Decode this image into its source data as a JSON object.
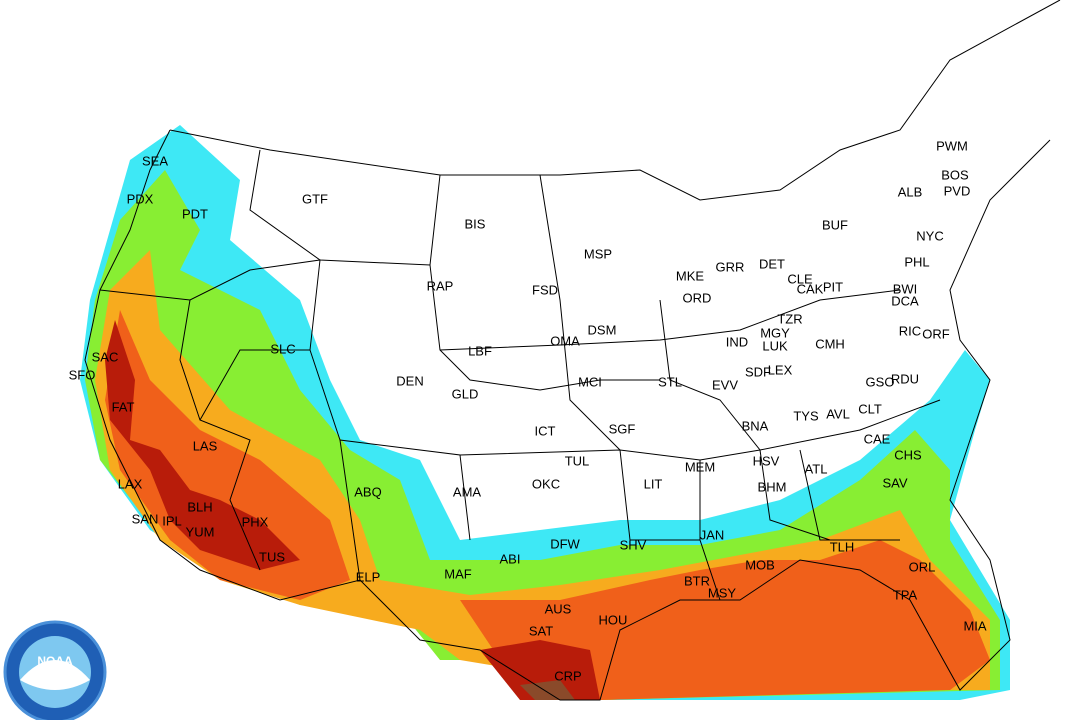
{
  "labels": [
    "SEA",
    "PDX",
    "PDT",
    "GTF",
    "BIS",
    "MSP",
    "RAP",
    "FSD",
    "SLC",
    "DEN",
    "LBF",
    "GLD",
    "OMA",
    "DSM",
    "MKE",
    "GRR",
    "DET",
    "ORD",
    "BUF",
    "ALB",
    "PWM",
    "BOS",
    "PVD",
    "NYC",
    "PHL",
    "CLE",
    "CAK",
    "PIT",
    "BWI",
    "DCA",
    "TZR",
    "MGY",
    "LUK",
    "CMH",
    "IND",
    "RIC",
    "ORF",
    "SAC",
    "SFO",
    "FAT",
    "LAS",
    "LAX",
    "SAN",
    "IPL",
    "BLH",
    "PHX",
    "YUM",
    "TUS",
    "MCI",
    "STL",
    "ICT",
    "SGF",
    "EVV",
    "SDF",
    "LEX",
    "GSO",
    "RDU",
    "TYS",
    "AVL",
    "CLT",
    "BNA",
    "CAE",
    "CHS",
    "SAV",
    "ABQ",
    "AMA",
    "TUL",
    "OKC",
    "LIT",
    "MEM",
    "HSV",
    "BHM",
    "ATL",
    "DFW",
    "SHV",
    "JAN",
    "ABI",
    "MAF",
    "ELP",
    "AUS",
    "SAT",
    "HOU",
    "BTR",
    "MSY",
    "MOB",
    "TLH",
    "ORL",
    "TPA",
    "MIA",
    "CRP"
  ],
  "logo": {
    "text": "NOAA"
  }
}
